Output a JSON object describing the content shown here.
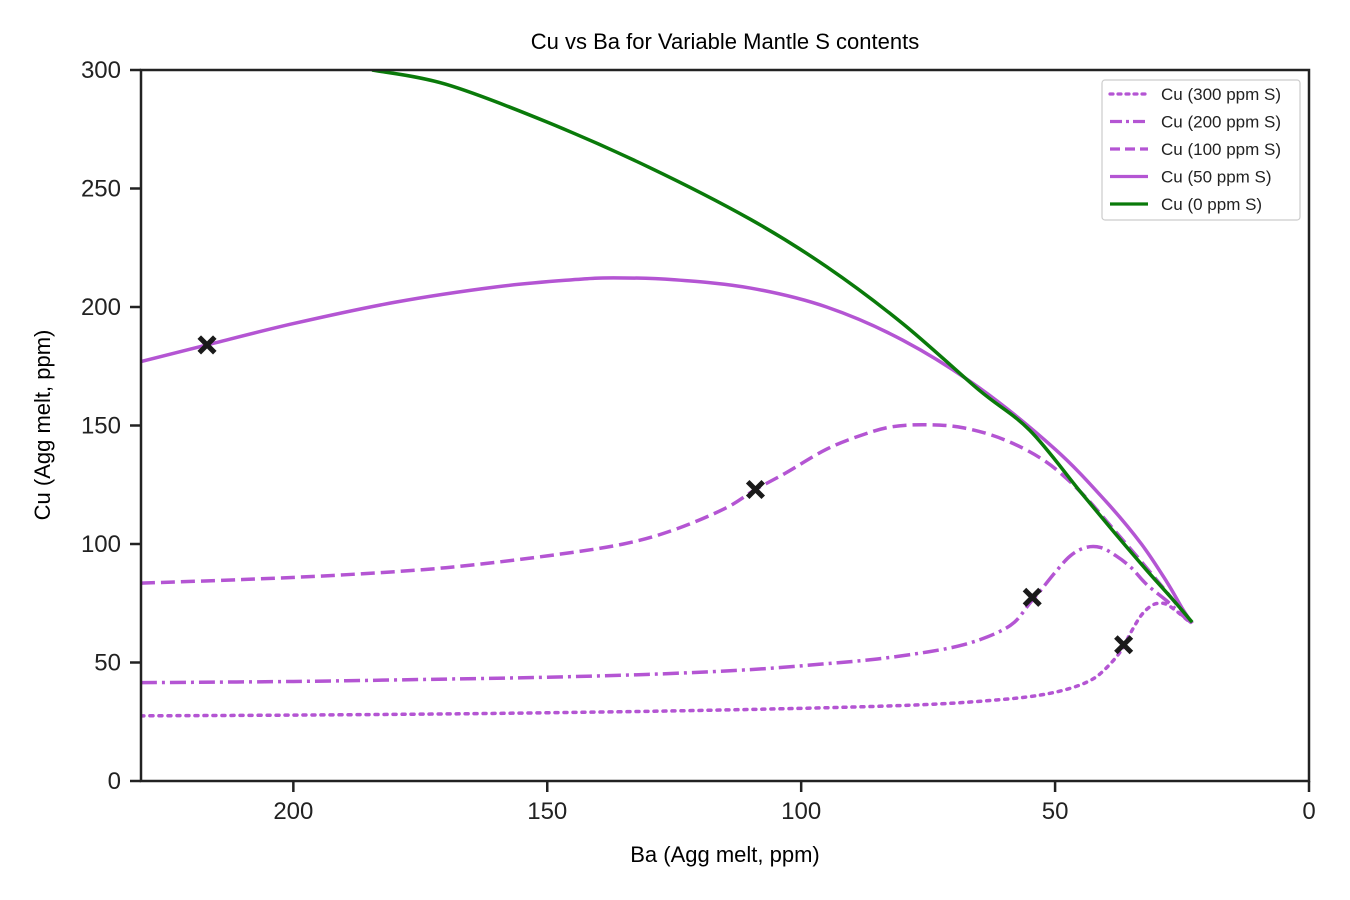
{
  "chart_data": {
    "type": "line",
    "title": "Cu vs Ba for Variable Mantle S contents",
    "xlabel": "Ba (Agg melt, ppm)",
    "ylabel": "Cu (Agg melt, ppm)",
    "xlim": [
      230,
      0
    ],
    "ylim": [
      0,
      300
    ],
    "x_inverted": true,
    "xticks": [
      200,
      150,
      100,
      50,
      0
    ],
    "yticks": [
      0,
      50,
      100,
      150,
      200,
      250,
      300
    ],
    "grid": false,
    "legend_position": "top-right",
    "series": [
      {
        "name": "Cu (300 ppm S)",
        "style": "dotted",
        "color": "#b455d3",
        "points": [
          [
            230,
            27.5
          ],
          [
            200,
            27.8
          ],
          [
            170,
            28.3
          ],
          [
            150,
            28.8
          ],
          [
            130,
            29.4
          ],
          [
            110,
            30.2
          ],
          [
            90,
            31.2
          ],
          [
            75,
            32.3
          ],
          [
            65,
            33.6
          ],
          [
            55,
            35.6
          ],
          [
            48,
            38.5
          ],
          [
            43,
            42.5
          ],
          [
            40,
            47.5
          ],
          [
            37,
            55
          ],
          [
            35,
            63
          ],
          [
            33,
            70
          ],
          [
            31,
            74
          ],
          [
            29.5,
            75
          ],
          [
            28,
            74.5
          ],
          [
            26,
            71.5
          ],
          [
            24,
            68
          ],
          [
            23,
            66.5
          ]
        ]
      },
      {
        "name": "Cu (200 ppm S)",
        "style": "dashdot",
        "color": "#b455d3",
        "points": [
          [
            230,
            41.5
          ],
          [
            200,
            42
          ],
          [
            170,
            43
          ],
          [
            150,
            43.8
          ],
          [
            130,
            45
          ],
          [
            110,
            47
          ],
          [
            95,
            49.5
          ],
          [
            85,
            51.5
          ],
          [
            75,
            54.5
          ],
          [
            68,
            57.5
          ],
          [
            62,
            62
          ],
          [
            58,
            67
          ],
          [
            55,
            75
          ],
          [
            53,
            80
          ],
          [
            50,
            88
          ],
          [
            47,
            95
          ],
          [
            44,
            98.5
          ],
          [
            41,
            98.5
          ],
          [
            38,
            95
          ],
          [
            35,
            90
          ],
          [
            32,
            83
          ],
          [
            28,
            76
          ],
          [
            25,
            70
          ],
          [
            23,
            66.5
          ]
        ]
      },
      {
        "name": "Cu (100 ppm S)",
        "style": "dashed",
        "color": "#b455d3",
        "points": [
          [
            230,
            83.5
          ],
          [
            210,
            85
          ],
          [
            190,
            87
          ],
          [
            170,
            90
          ],
          [
            150,
            95
          ],
          [
            135,
            100
          ],
          [
            125,
            106
          ],
          [
            115,
            115
          ],
          [
            109,
            123
          ],
          [
            103,
            130
          ],
          [
            95,
            140
          ],
          [
            88,
            146
          ],
          [
            82,
            149.5
          ],
          [
            75,
            150.3
          ],
          [
            68,
            149
          ],
          [
            60,
            144
          ],
          [
            52,
            135
          ],
          [
            45,
            122
          ],
          [
            38,
            105
          ],
          [
            32,
            90
          ],
          [
            27,
            77
          ],
          [
            23,
            66.5
          ]
        ]
      },
      {
        "name": "Cu (50 ppm S)",
        "style": "solid",
        "color": "#b455d3",
        "points": [
          [
            230,
            177
          ],
          [
            217,
            184
          ],
          [
            200,
            193
          ],
          [
            180,
            202
          ],
          [
            160,
            208.5
          ],
          [
            145,
            211.5
          ],
          [
            137,
            212.3
          ],
          [
            125,
            211.5
          ],
          [
            110,
            208
          ],
          [
            95,
            200
          ],
          [
            80,
            186
          ],
          [
            65,
            166
          ],
          [
            50,
            140
          ],
          [
            40,
            118
          ],
          [
            33,
            100
          ],
          [
            28,
            84
          ],
          [
            25,
            73
          ],
          [
            23,
            66.5
          ]
        ]
      },
      {
        "name": "Cu (0 ppm S)",
        "style": "solid",
        "color": "#0a7a0a",
        "points": [
          [
            184.5,
            300
          ],
          [
            170,
            294
          ],
          [
            150,
            278
          ],
          [
            130,
            259
          ],
          [
            110,
            237
          ],
          [
            95,
            217
          ],
          [
            80,
            193
          ],
          [
            65,
            165
          ],
          [
            55,
            148
          ],
          [
            45,
            122
          ],
          [
            38,
            104
          ],
          [
            32,
            89
          ],
          [
            27,
            77
          ],
          [
            23,
            67
          ]
        ]
      }
    ],
    "markers": [
      {
        "x": 217,
        "y": 184,
        "series": "Cu (50 ppm S)"
      },
      {
        "x": 109,
        "y": 123,
        "series": "Cu (100 ppm S)"
      },
      {
        "x": 54.5,
        "y": 77.5,
        "series": "Cu (200 ppm S)"
      },
      {
        "x": 36.5,
        "y": 57.5,
        "series": "Cu (300 ppm S)"
      }
    ]
  }
}
